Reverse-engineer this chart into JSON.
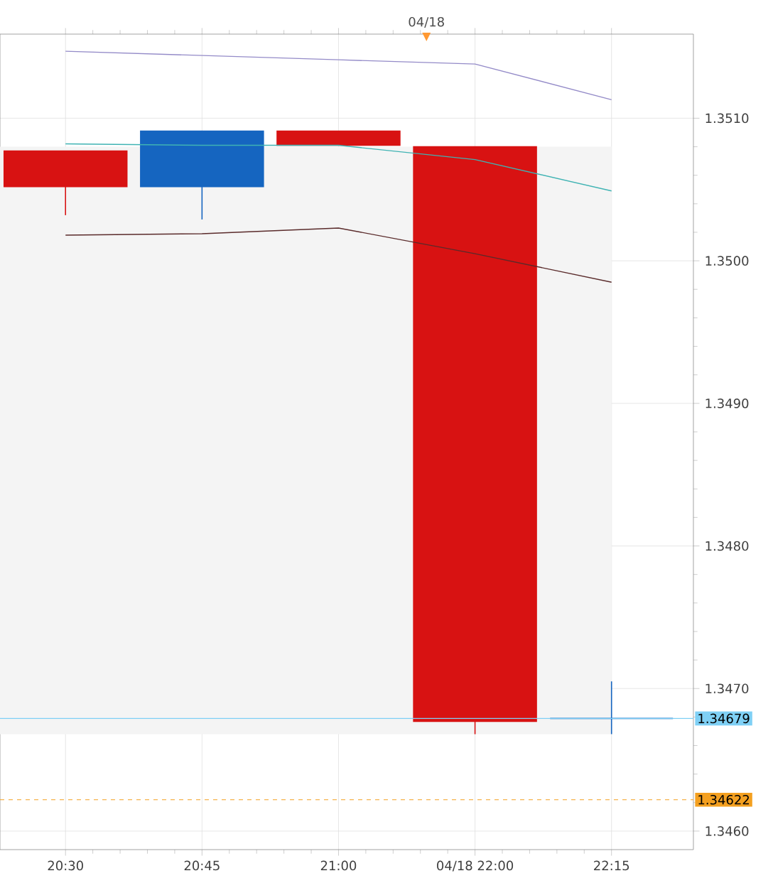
{
  "chart_data": {
    "type": "candlestick",
    "categories": [
      "20:30",
      "20:45",
      "21:00",
      "04/18 22:00",
      "22:15"
    ],
    "ohlc": [
      [
        1.35077,
        1.35077,
        1.35032,
        1.35052
      ],
      [
        1.35052,
        1.35091,
        1.35029,
        1.35091
      ],
      [
        1.35091,
        1.35091,
        1.35081,
        1.35081
      ],
      [
        1.3508,
        1.3508,
        1.34668,
        1.34677
      ],
      [
        1.34679,
        1.34705,
        1.34668,
        1.34679
      ]
    ],
    "colors": [
      "#d81212",
      "#1565c0",
      "#d81212",
      "#d81212",
      "#1565c0"
    ],
    "series": [
      {
        "type": "line",
        "color": "#948bc8",
        "values": [
          1.35147,
          1.35144,
          1.35141,
          1.35138,
          1.35113
        ]
      },
      {
        "type": "line",
        "color": "#3fb3b3",
        "values": [
          1.35082,
          1.35081,
          1.35081,
          1.35071,
          1.35049
        ]
      },
      {
        "type": "line",
        "color": "#5a2b2b",
        "values": [
          1.35018,
          1.35019,
          1.35023,
          1.35005,
          1.34985
        ]
      }
    ],
    "ylim": [
      1.34587,
      1.35159
    ],
    "yticks": [
      {
        "value": 1.346,
        "label": "1.3460"
      },
      {
        "value": 1.347,
        "label": "1.3470"
      },
      {
        "value": 1.348,
        "label": "1.3480"
      },
      {
        "value": 1.349,
        "label": "1.3490"
      },
      {
        "value": 1.35,
        "label": "1.3500"
      },
      {
        "value": 1.351,
        "label": "1.3510"
      }
    ],
    "ref_lines": [
      {
        "axis": "y",
        "value": 1.34679,
        "label": "1.34679",
        "color": "#7fd0f5",
        "line_style": "solid"
      },
      {
        "axis": "y",
        "value": 1.34622,
        "label": "1.34622",
        "color": "#f4a020",
        "line_style": "dashed"
      }
    ],
    "bands": [
      {
        "axis": "y",
        "from": 1.34668,
        "to": 1.3508,
        "color": "#f4f4f4"
      }
    ],
    "annotations": [
      "04/18"
    ],
    "grid": true
  }
}
